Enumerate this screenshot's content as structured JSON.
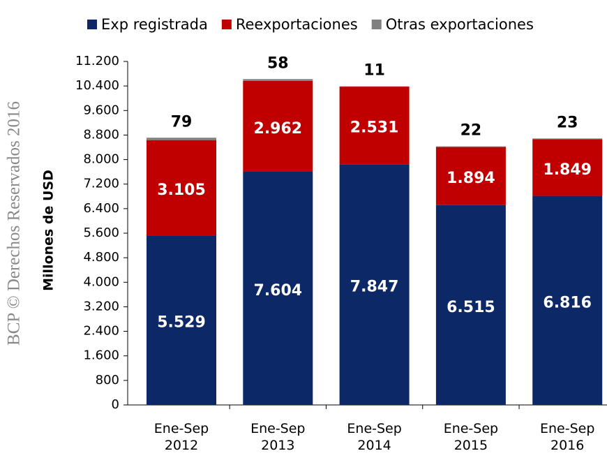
{
  "chart_data": {
    "type": "stacked_bar",
    "watermark": "BCP © Derechos Reservados 2016",
    "y_label": "Millones de  USD",
    "categories": [
      "Ene-Sep 2012",
      "Ene-Sep 2013",
      "Ene-Sep 2014",
      "Ene-Sep 2015",
      "Ene-Sep 2016"
    ],
    "series": [
      {
        "name": "Exp registrada",
        "color": "#0c2866",
        "values": [
          5529,
          7604,
          7847,
          6515,
          6816
        ],
        "value_labels": [
          "5.529",
          "7.604",
          "7.847",
          "6.515",
          "6.816"
        ]
      },
      {
        "name": "Reexportaciones",
        "color": "#c00000",
        "values": [
          3105,
          2962,
          2531,
          1894,
          1849
        ],
        "value_labels": [
          "3.105",
          "2.962",
          "2.531",
          "1.894",
          "1.849"
        ]
      },
      {
        "name": "Otras exportaciones",
        "color": "#808080",
        "values": [
          79,
          58,
          11,
          22,
          23
        ]
      }
    ],
    "ylim": [
      0,
      11200
    ],
    "yticks": [
      0,
      800,
      {
        "value": 1600,
        "label": "1.600"
      },
      {
        "value": 2400,
        "label": "2.400"
      },
      {
        "value": 3200,
        "label": "3.200"
      },
      {
        "value": 4000,
        "label": "4.000"
      },
      {
        "value": 4800,
        "label": "4.800"
      },
      {
        "value": 5600,
        "label": "5.600"
      },
      {
        "value": 6400,
        "label": "6.400"
      },
      {
        "value": 7200,
        "label": "7.200"
      },
      {
        "value": 8000,
        "label": "8.000"
      },
      {
        "value": 8800,
        "label": "8.800"
      },
      {
        "value": 9600,
        "label": "9.600"
      },
      {
        "value": 10400,
        "label": "10.400"
      },
      {
        "value": 11200,
        "label": "11.200"
      }
    ],
    "grid": false,
    "legend": "top"
  }
}
